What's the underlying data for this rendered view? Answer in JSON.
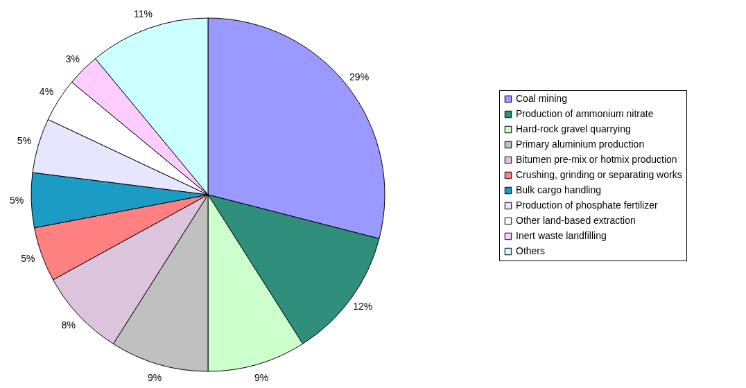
{
  "chart_data": {
    "type": "pie",
    "categories": [
      "Coal mining",
      "Production of ammonium nitrate",
      "Hard-rock gravel quarrying",
      "Primary aluminium production",
      "Bitumen pre-mix or hotmix production",
      "Crushing, grinding or separating works",
      "Bulk cargo handling",
      "Production of phosphate fertilizer",
      "Other land-based extraction",
      "Inert waste landfilling",
      "Others"
    ],
    "values": [
      29,
      12,
      9,
      9,
      8,
      5,
      5,
      5,
      4,
      3,
      11
    ],
    "value_labels": [
      "29%",
      "12%",
      "9%",
      "9%",
      "8%",
      "5%",
      "5%",
      "5%",
      "4%",
      "3%",
      "11%"
    ],
    "colors": [
      "#9999ff",
      "#2f8f7c",
      "#ccffcc",
      "#c0c0c0",
      "#dcc4dc",
      "#ff8080",
      "#1a9cc4",
      "#e6e6ff",
      "#ffffff",
      "#ffccff",
      "#ccffff"
    ],
    "legend": "right"
  }
}
